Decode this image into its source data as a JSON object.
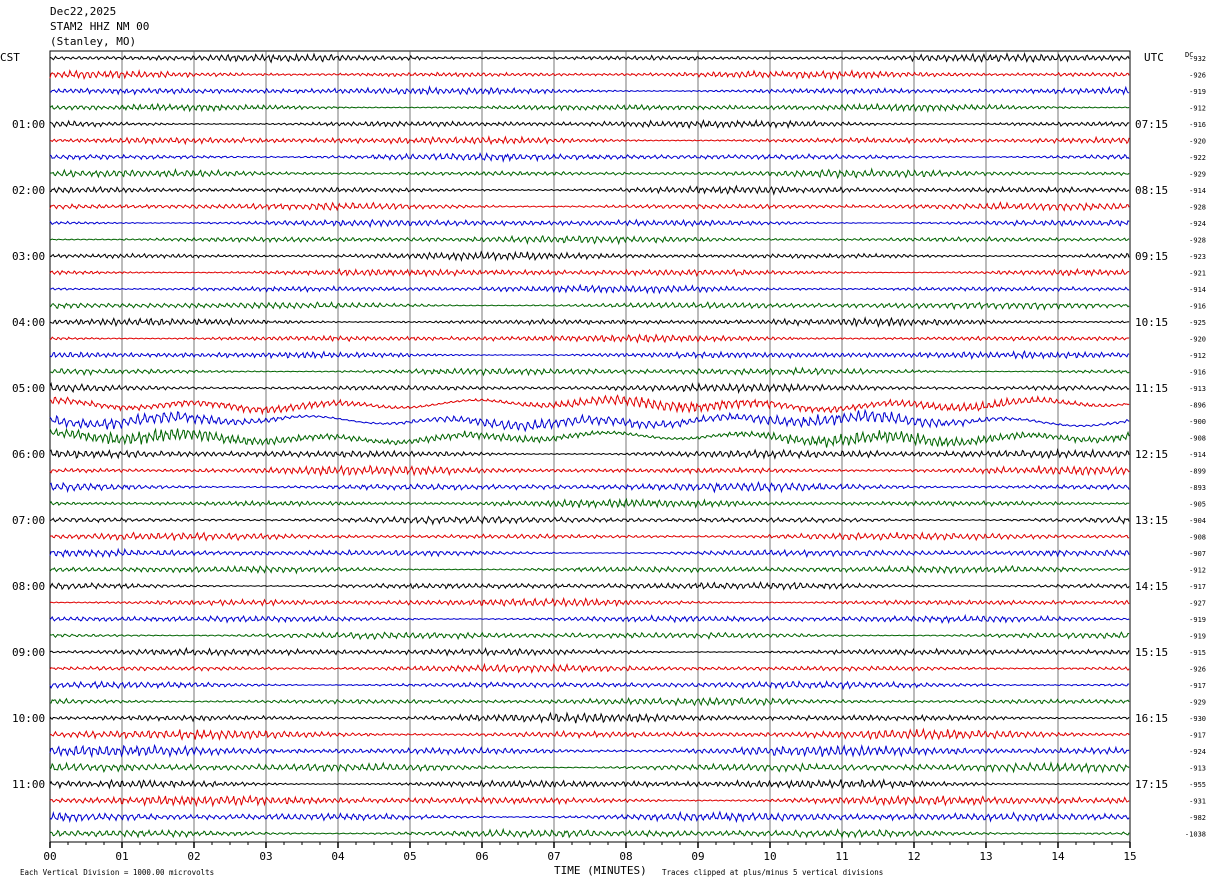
{
  "header": {
    "date": "Dec22,2025",
    "station": "STAM2 HHZ NM 00",
    "location": "(Stanley, MO)"
  },
  "left_zone": "CST",
  "right_zone": "UTC",
  "dc_label": "DC",
  "colors": {
    "background": "#ffffff",
    "grid": "#000000",
    "traces": [
      "#000000",
      "#e00000",
      "#0000d0",
      "#006400"
    ]
  },
  "chart_data": {
    "type": "line",
    "title": "STAM2 HHZ NM 00",
    "xlabel": "TIME (MINUTES)",
    "xlim": [
      0,
      15
    ],
    "x_ticks": [
      "00",
      "01",
      "02",
      "03",
      "04",
      "05",
      "06",
      "07",
      "08",
      "09",
      "10",
      "11",
      "12",
      "13",
      "14",
      "15"
    ],
    "rows_per_hour": 4,
    "left_hour_labels": [
      "01:00",
      "02:00",
      "03:00",
      "04:00",
      "05:00",
      "06:00",
      "07:00",
      "08:00",
      "09:00",
      "10:00",
      "11:00"
    ],
    "right_hour_labels": [
      "07:15",
      "08:15",
      "09:15",
      "10:15",
      "11:15",
      "12:15",
      "13:15",
      "14:15",
      "15:15",
      "16:15",
      "17:15"
    ],
    "dc_offsets": [
      "-932",
      "-926",
      "-919",
      "-912",
      "-916",
      "-920",
      "-922",
      "-929",
      "-914",
      "-928",
      "-924",
      "-928",
      "-923",
      "-921",
      "-914",
      "-916",
      "-925",
      "-920",
      "-912",
      "-916",
      "-913",
      "-896",
      "-900",
      "-908",
      "-914",
      "-899",
      "-893",
      "-905",
      "-904",
      "-908",
      "-907",
      "-912",
      "-917",
      "-927",
      "-919",
      "-919",
      "-915",
      "-926",
      "-917",
      "-929",
      "-930",
      "-917",
      "-924",
      "-913",
      "-955",
      "-931",
      "-982",
      "-1038"
    ],
    "amplitude": [
      1,
      1,
      1,
      1,
      1,
      1,
      1,
      1,
      1,
      1,
      1,
      1,
      1,
      1,
      1,
      1,
      1,
      1,
      1,
      1,
      1.1,
      1.6,
      1.8,
      1.7,
      1.2,
      1.2,
      1.2,
      1.1,
      1,
      1,
      1,
      1,
      1,
      1,
      1,
      1,
      1,
      1,
      1,
      1,
      1.2,
      1.3,
      1.4,
      1.3,
      1.2,
      1.3,
      1.3,
      1.2
    ],
    "footer_left": "Each Vertical Division = 1000.00 microvolts",
    "footer_right": "Traces clipped at plus/minus 5 vertical divisions"
  }
}
